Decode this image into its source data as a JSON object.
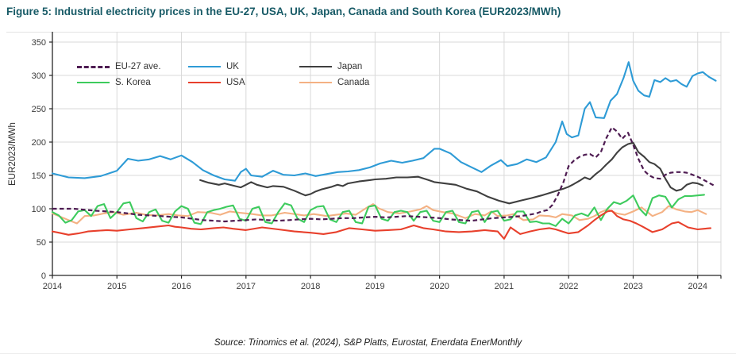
{
  "title": "Figure 5: Industrial electricity prices in the EU-27, USA, UK, Japan, Canada and South Korea (EUR2023/MWh)",
  "source": "Source: Trinomics et al. (2024), S&P Platts, Eurostat, Enerdata EnerMonthly",
  "colors": {
    "title_text": "#175A66",
    "axis": "#262626",
    "grid": "#D9D9D9",
    "tick_label": "#3c3c3c",
    "legend_text": "#333333"
  },
  "chart_data": {
    "type": "line",
    "title": "Industrial electricity prices in the EU-27, USA, UK, Japan, Canada and South Korea",
    "xlabel": "",
    "ylabel": "EUR2023/MWh",
    "ylim": [
      0,
      350
    ],
    "xlim": [
      2014,
      2024.36
    ],
    "yticks": [
      0,
      50,
      100,
      150,
      200,
      250,
      300,
      350
    ],
    "xticks": [
      2014,
      2015,
      2016,
      2017,
      2018,
      2019,
      2020,
      2021,
      2022,
      2023,
      2024
    ],
    "grid": true,
    "legend_position": "inside-top-left",
    "legend_rows": [
      [
        "EU-27 ave.",
        "UK",
        "Japan"
      ],
      [
        "S. Korea",
        "USA",
        "Canada"
      ]
    ],
    "series": [
      {
        "name": "Canada",
        "color": "#F4B183",
        "dash": false,
        "x": [
          2014.0,
          2014.1,
          2014.25,
          2014.38,
          2014.5,
          2014.65,
          2014.8,
          2014.95,
          2015.1,
          2015.3,
          2015.45,
          2015.6,
          2015.8,
          2015.95,
          2016.1,
          2016.25,
          2016.45,
          2016.6,
          2016.75,
          2016.9,
          2017.1,
          2017.25,
          2017.4,
          2017.6,
          2017.75,
          2017.9,
          2018.05,
          2018.25,
          2018.4,
          2018.55,
          2018.7,
          2018.88,
          2018.97,
          2019.05,
          2019.2,
          2019.38,
          2019.55,
          2019.7,
          2019.8,
          2019.9,
          2020.05,
          2020.2,
          2020.4,
          2020.55,
          2020.7,
          2020.8,
          2020.9,
          2021.05,
          2021.15,
          2021.3,
          2021.45,
          2021.55,
          2021.7,
          2021.8,
          2021.9,
          2022.05,
          2022.17,
          2022.3,
          2022.4,
          2022.5,
          2022.6,
          2022.75,
          2022.87,
          2023.0,
          2023.13,
          2023.3,
          2023.45,
          2023.55,
          2023.67,
          2023.8,
          2023.9,
          2024.0,
          2024.13
        ],
        "values": [
          93,
          89,
          83,
          78,
          89,
          90,
          93,
          95,
          91,
          94,
          91,
          90,
          92,
          90,
          89,
          95,
          94,
          91,
          96,
          94,
          92,
          90,
          90,
          94,
          92,
          90,
          92,
          89,
          91,
          93,
          91,
          102,
          107,
          101,
          95,
          93,
          96,
          99,
          104,
          98,
          95,
          93,
          86,
          92,
          90,
          96,
          89,
          90,
          92,
          83,
          84,
          90,
          89,
          87,
          92,
          90,
          83,
          85,
          89,
          95,
          99,
          93,
          91,
          96,
          102,
          89,
          95,
          104,
          99,
          96,
          95,
          98,
          92
        ]
      },
      {
        "name": "S. Korea",
        "color": "#3DCB5D",
        "dash": false,
        "x": [
          2014.0,
          2014.1,
          2014.2,
          2014.3,
          2014.4,
          2014.5,
          2014.6,
          2014.7,
          2014.8,
          2014.9,
          2015.0,
          2015.1,
          2015.2,
          2015.3,
          2015.4,
          2015.5,
          2015.6,
          2015.7,
          2015.8,
          2015.9,
          2016.0,
          2016.1,
          2016.2,
          2016.3,
          2016.4,
          2016.5,
          2016.6,
          2016.7,
          2016.8,
          2016.9,
          2017.0,
          2017.1,
          2017.2,
          2017.3,
          2017.4,
          2017.5,
          2017.6,
          2017.7,
          2017.8,
          2017.9,
          2018.0,
          2018.1,
          2018.2,
          2018.3,
          2018.4,
          2018.5,
          2018.6,
          2018.7,
          2018.8,
          2018.9,
          2019.0,
          2019.1,
          2019.2,
          2019.3,
          2019.4,
          2019.5,
          2019.6,
          2019.7,
          2019.8,
          2019.9,
          2020.0,
          2020.1,
          2020.2,
          2020.3,
          2020.4,
          2020.5,
          2020.6,
          2020.7,
          2020.8,
          2020.9,
          2021.0,
          2021.1,
          2021.2,
          2021.3,
          2021.4,
          2021.5,
          2021.6,
          2021.7,
          2021.8,
          2021.9,
          2022.0,
          2022.1,
          2022.2,
          2022.3,
          2022.4,
          2022.5,
          2022.6,
          2022.7,
          2022.8,
          2022.9,
          2023.0,
          2023.1,
          2023.2,
          2023.3,
          2023.4,
          2023.5,
          2023.6,
          2023.7,
          2023.8,
          2023.9,
          2024.0,
          2024.1
        ],
        "values": [
          95,
          90,
          79,
          83,
          96,
          98,
          89,
          104,
          107,
          86,
          95,
          108,
          110,
          86,
          81,
          95,
          99,
          82,
          79,
          96,
          104,
          100,
          79,
          77,
          95,
          98,
          100,
          103,
          105,
          85,
          82,
          100,
          103,
          80,
          78,
          95,
          108,
          105,
          85,
          80,
          98,
          103,
          104,
          84,
          80,
          95,
          97,
          80,
          78,
          103,
          105,
          85,
          82,
          95,
          97,
          95,
          82,
          95,
          97,
          82,
          80,
          95,
          97,
          80,
          78,
          95,
          97,
          80,
          95,
          97,
          82,
          84,
          96,
          96,
          80,
          81,
          78,
          78,
          74,
          85,
          78,
          90,
          93,
          89,
          102,
          83,
          100,
          110,
          107,
          112,
          120,
          100,
          90,
          116,
          120,
          118,
          102,
          114,
          119,
          119,
          120,
          121
        ]
      },
      {
        "name": "USA",
        "color": "#E8402C",
        "dash": false,
        "x": [
          2014.0,
          2014.1,
          2014.25,
          2014.4,
          2014.55,
          2014.7,
          2014.85,
          2015.0,
          2015.2,
          2015.4,
          2015.6,
          2015.8,
          2015.9,
          2016.0,
          2016.15,
          2016.3,
          2016.5,
          2016.65,
          2016.8,
          2017.0,
          2017.25,
          2017.5,
          2017.75,
          2018.0,
          2018.2,
          2018.4,
          2018.6,
          2018.8,
          2019.0,
          2019.2,
          2019.4,
          2019.6,
          2019.75,
          2019.9,
          2020.1,
          2020.3,
          2020.5,
          2020.7,
          2020.9,
          2021.0,
          2021.1,
          2021.25,
          2021.4,
          2021.55,
          2021.7,
          2021.8,
          2021.9,
          2022.0,
          2022.15,
          2022.3,
          2022.4,
          2022.5,
          2022.6,
          2022.67,
          2022.75,
          2022.85,
          2022.95,
          2023.05,
          2023.15,
          2023.3,
          2023.45,
          2023.6,
          2023.7,
          2023.85,
          2024.0,
          2024.1,
          2024.2
        ],
        "values": [
          66,
          64,
          61,
          63,
          66,
          67,
          68,
          67,
          69,
          71,
          73,
          75,
          73,
          72,
          70,
          69,
          71,
          72,
          70,
          68,
          72,
          69,
          66,
          64,
          62,
          65,
          71,
          69,
          67,
          68,
          69,
          75,
          71,
          69,
          66,
          65,
          66,
          68,
          66,
          55,
          72,
          62,
          66,
          69,
          71,
          69,
          66,
          63,
          65,
          75,
          83,
          90,
          96,
          97,
          89,
          84,
          82,
          78,
          73,
          65,
          69,
          78,
          80,
          72,
          69,
          70,
          71
        ]
      },
      {
        "name": "Japan",
        "color": "#3F3F3F",
        "dash": false,
        "x": [
          2016.29,
          2016.42,
          2016.58,
          2016.67,
          2016.83,
          2016.92,
          2017.0,
          2017.08,
          2017.17,
          2017.33,
          2017.42,
          2017.58,
          2017.75,
          2017.92,
          2018.0,
          2018.08,
          2018.17,
          2018.33,
          2018.42,
          2018.5,
          2018.58,
          2018.75,
          2018.92,
          2019.0,
          2019.17,
          2019.33,
          2019.5,
          2019.67,
          2019.83,
          2019.92,
          2020.08,
          2020.25,
          2020.42,
          2020.58,
          2020.75,
          2020.92,
          2021.08,
          2021.25,
          2021.42,
          2021.58,
          2021.75,
          2021.92,
          2022.0,
          2022.08,
          2022.17,
          2022.25,
          2022.33,
          2022.42,
          2022.5,
          2022.58,
          2022.67,
          2022.75,
          2022.83,
          2022.92,
          2023.0,
          2023.08,
          2023.17,
          2023.25,
          2023.33,
          2023.42,
          2023.5,
          2023.58,
          2023.67,
          2023.75,
          2023.83,
          2023.92,
          2024.0,
          2024.08
        ],
        "values": [
          143,
          139,
          136,
          138,
          134,
          132,
          136,
          140,
          136,
          132,
          134,
          133,
          127,
          120,
          122,
          126,
          129,
          133,
          136,
          134,
          138,
          141,
          143,
          144,
          145,
          147,
          147,
          148,
          143,
          140,
          138,
          136,
          130,
          126,
          118,
          112,
          108,
          112,
          116,
          120,
          125,
          130,
          133,
          137,
          142,
          147,
          144,
          152,
          158,
          166,
          174,
          184,
          192,
          197,
          199,
          185,
          178,
          170,
          167,
          160,
          145,
          132,
          127,
          129,
          136,
          139,
          138,
          135
        ]
      },
      {
        "name": "UK",
        "color": "#2E9BD6",
        "dash": false,
        "x": [
          2014.0,
          2014.25,
          2014.5,
          2014.75,
          2015.0,
          2015.17,
          2015.33,
          2015.5,
          2015.67,
          2015.83,
          2016.0,
          2016.17,
          2016.33,
          2016.5,
          2016.67,
          2016.83,
          2016.92,
          2017.0,
          2017.08,
          2017.25,
          2017.42,
          2017.58,
          2017.75,
          2017.92,
          2018.08,
          2018.25,
          2018.42,
          2018.58,
          2018.75,
          2018.92,
          2019.08,
          2019.25,
          2019.42,
          2019.58,
          2019.75,
          2019.92,
          2020.0,
          2020.17,
          2020.33,
          2020.5,
          2020.65,
          2020.8,
          2020.95,
          2021.05,
          2021.2,
          2021.35,
          2021.5,
          2021.65,
          2021.8,
          2021.9,
          2021.97,
          2022.05,
          2022.15,
          2022.25,
          2022.33,
          2022.42,
          2022.55,
          2022.65,
          2022.75,
          2022.85,
          2022.93,
          2023.0,
          2023.08,
          2023.17,
          2023.25,
          2023.33,
          2023.42,
          2023.5,
          2023.58,
          2023.67,
          2023.75,
          2023.83,
          2023.92,
          2024.0,
          2024.08,
          2024.17,
          2024.28
        ],
        "values": [
          153,
          147,
          146,
          149,
          157,
          175,
          172,
          174,
          179,
          174,
          180,
          170,
          158,
          150,
          144,
          142,
          155,
          160,
          150,
          148,
          157,
          151,
          150,
          153,
          149,
          152,
          155,
          156,
          158,
          162,
          168,
          172,
          169,
          172,
          176,
          190,
          190,
          183,
          170,
          162,
          155,
          165,
          173,
          164,
          167,
          174,
          170,
          177,
          200,
          231,
          212,
          207,
          210,
          250,
          260,
          237,
          236,
          262,
          272,
          296,
          320,
          292,
          277,
          270,
          268,
          293,
          290,
          296,
          291,
          293,
          287,
          283,
          299,
          303,
          305,
          298,
          292
        ]
      },
      {
        "name": "EU-27 ave.",
        "color": "#4E1C52",
        "dash": true,
        "x": [
          2014.0,
          2014.33,
          2014.67,
          2015.0,
          2015.17,
          2015.33,
          2015.5,
          2015.67,
          2015.83,
          2016.0,
          2016.17,
          2016.33,
          2016.5,
          2016.67,
          2016.83,
          2017.0,
          2017.17,
          2017.33,
          2017.5,
          2017.67,
          2017.83,
          2018.0,
          2018.17,
          2018.33,
          2018.5,
          2018.67,
          2018.83,
          2019.0,
          2019.17,
          2019.33,
          2019.5,
          2019.67,
          2019.83,
          2020.0,
          2020.17,
          2020.33,
          2020.5,
          2020.67,
          2020.83,
          2021.0,
          2021.17,
          2021.33,
          2021.5,
          2021.58,
          2021.67,
          2021.75,
          2021.83,
          2021.92,
          2022.0,
          2022.08,
          2022.17,
          2022.25,
          2022.33,
          2022.42,
          2022.5,
          2022.58,
          2022.67,
          2022.75,
          2022.83,
          2022.92,
          2023.0,
          2023.08,
          2023.17,
          2023.25,
          2023.33,
          2023.42,
          2023.5,
          2023.58,
          2023.67,
          2023.75,
          2023.83,
          2023.92,
          2024.0,
          2024.08,
          2024.17,
          2024.25
        ],
        "values": [
          100,
          100,
          97,
          95,
          93,
          91,
          90,
          89,
          88,
          87,
          85,
          83,
          82,
          81,
          82,
          83,
          84,
          83,
          82,
          83,
          84,
          85,
          84,
          85,
          86,
          86,
          87,
          88,
          87,
          88,
          89,
          88,
          87,
          86,
          84,
          83,
          82,
          84,
          86,
          87,
          88,
          90,
          93,
          96,
          98,
          106,
          120,
          140,
          164,
          172,
          178,
          181,
          182,
          177,
          185,
          205,
          222,
          216,
          205,
          214,
          196,
          175,
          157,
          150,
          146,
          145,
          151,
          154,
          155,
          155,
          154,
          151,
          148,
          144,
          139,
          135
        ]
      }
    ]
  }
}
